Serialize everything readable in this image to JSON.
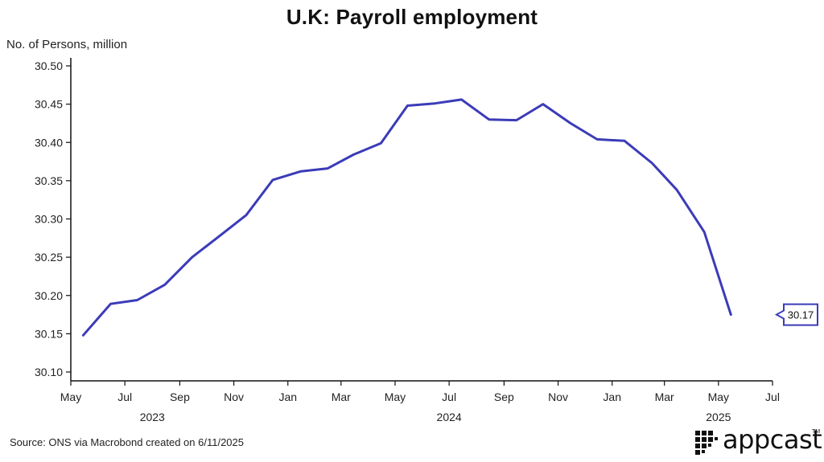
{
  "title": "U.K: Payroll employment",
  "ylabel": "No. of Persons, million",
  "source": "Source: ONS via Macrobond created on 6/11/2025",
  "logo": {
    "text": "appcast",
    "tm": "TM"
  },
  "colors": {
    "line": "#3b3bb8",
    "axis": "#111111"
  },
  "chart_data": {
    "type": "line",
    "title": "U.K: Payroll employment",
    "ylabel": "No. of Persons, million",
    "xlabel": "",
    "ylim": [
      30.1,
      30.5
    ],
    "yticks": [
      "30.10",
      "30.15",
      "30.20",
      "30.25",
      "30.30",
      "30.35",
      "30.40",
      "30.45",
      "30.50"
    ],
    "xticks": [
      {
        "date": "2023-05-01",
        "label": "May"
      },
      {
        "date": "2023-07-01",
        "label": "Jul"
      },
      {
        "date": "2023-09-01",
        "label": "Sep"
      },
      {
        "date": "2023-11-01",
        "label": "Nov"
      },
      {
        "date": "2024-01-01",
        "label": "Jan"
      },
      {
        "date": "2024-03-01",
        "label": "Mar"
      },
      {
        "date": "2024-05-01",
        "label": "May"
      },
      {
        "date": "2024-07-01",
        "label": "Jul"
      },
      {
        "date": "2024-09-01",
        "label": "Sep"
      },
      {
        "date": "2024-11-01",
        "label": "Nov"
      },
      {
        "date": "2025-01-01",
        "label": "Jan"
      },
      {
        "date": "2025-03-01",
        "label": "Mar"
      },
      {
        "date": "2025-05-01",
        "label": "May"
      },
      {
        "date": "2025-07-01",
        "label": "Jul"
      }
    ],
    "years": [
      {
        "date": "2023-08-01",
        "label": "2023"
      },
      {
        "date": "2024-07-01",
        "label": "2024"
      },
      {
        "date": "2025-05-01",
        "label": "2025"
      }
    ],
    "xlim": [
      "2023-05-01",
      "2025-07-01"
    ],
    "series": [
      {
        "x": [
          "2023-05-15",
          "2023-06-15",
          "2023-07-15",
          "2023-08-15",
          "2023-09-15",
          "2023-10-15",
          "2023-11-15",
          "2023-12-15",
          "2024-01-15",
          "2024-02-15",
          "2024-03-15",
          "2024-04-15",
          "2024-05-15",
          "2024-06-15",
          "2024-07-15",
          "2024-08-15",
          "2024-09-15",
          "2024-10-15",
          "2024-11-15",
          "2024-12-15",
          "2025-01-15",
          "2025-02-15",
          "2025-03-15",
          "2025-04-15",
          "2025-05-15"
        ],
        "values": [
          30.148,
          30.189,
          30.194,
          30.214,
          30.25,
          30.277,
          30.305,
          30.351,
          30.362,
          30.366,
          30.384,
          30.399,
          30.448,
          30.451,
          30.456,
          30.43,
          30.429,
          30.45,
          30.425,
          30.404,
          30.402,
          30.373,
          30.338,
          30.283,
          30.175
        ]
      }
    ],
    "last_value_label": "30.17",
    "grid": false,
    "legend": "none"
  }
}
